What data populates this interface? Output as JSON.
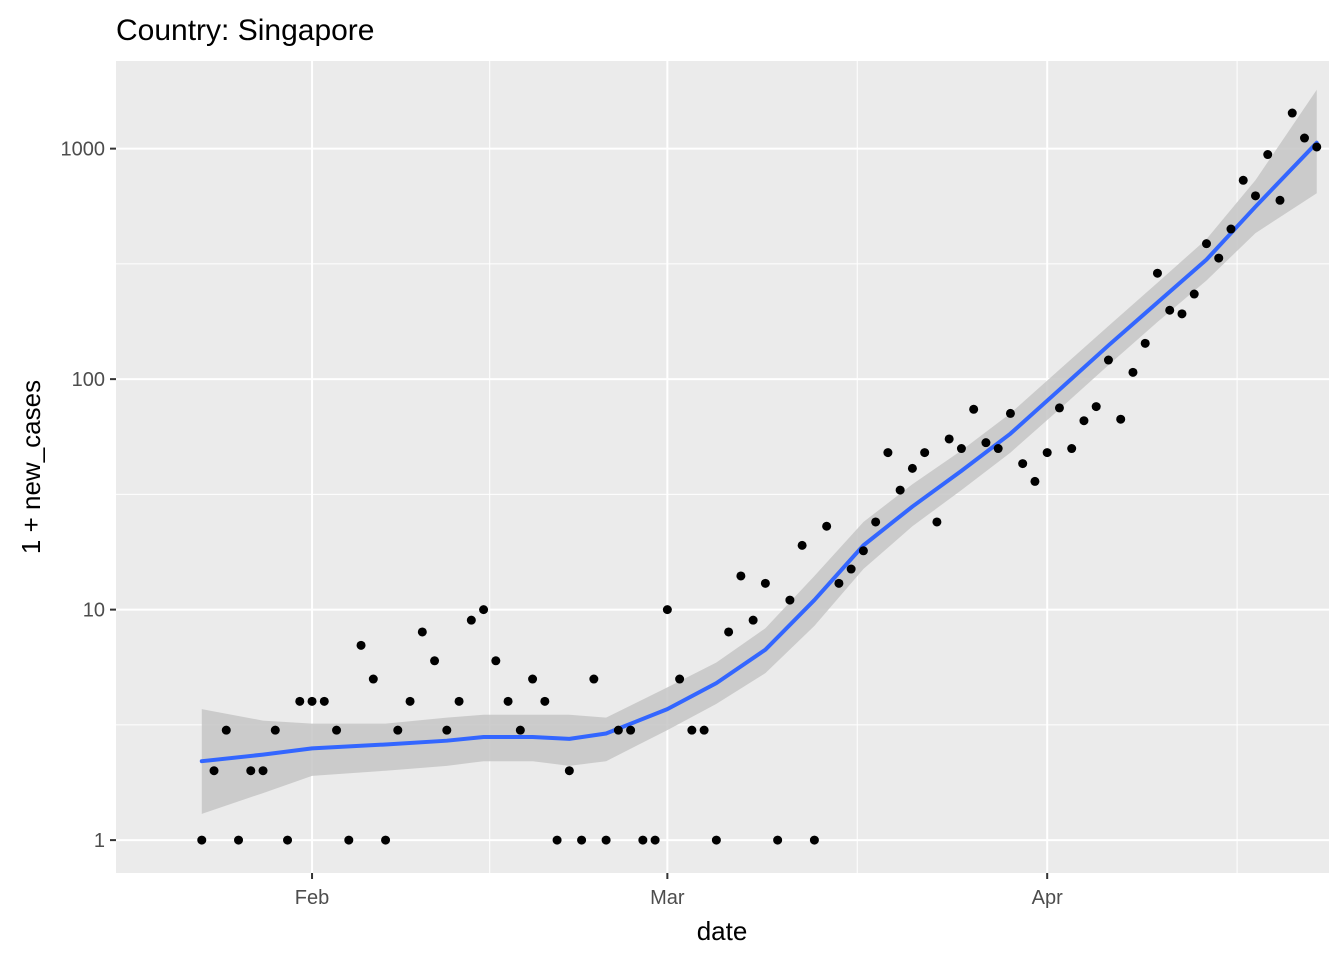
{
  "chart_data": {
    "type": "scatter",
    "title": "Country: Singapore",
    "xlabel": "date",
    "ylabel": "1 + new_cases",
    "y_scale": "log10",
    "ylim": [
      0.72,
      2400
    ],
    "xlim": [
      "2020-01-16",
      "2020-04-24"
    ],
    "x_ticks": [
      {
        "label": "Feb",
        "date": "2020-02-01"
      },
      {
        "label": "Mar",
        "date": "2020-03-01"
      },
      {
        "label": "Apr",
        "date": "2020-04-01"
      }
    ],
    "y_ticks": [
      {
        "label": "1",
        "value": 1
      },
      {
        "label": "10",
        "value": 10
      },
      {
        "label": "100",
        "value": 100
      },
      {
        "label": "1000",
        "value": 1000
      }
    ],
    "grid": true,
    "colors": {
      "panel": "#EBEBEB",
      "grid": "#FFFFFF",
      "point": "#000000",
      "smooth": "#3366FF",
      "ribbon": "#C6C6C6",
      "axis_text": "#4D4D4D"
    },
    "series": [
      {
        "type": "points",
        "points": [
          {
            "x": "2020-01-23",
            "y": 1
          },
          {
            "x": "2020-01-24",
            "y": 2
          },
          {
            "x": "2020-01-25",
            "y": 3
          },
          {
            "x": "2020-01-26",
            "y": 1
          },
          {
            "x": "2020-01-27",
            "y": 2
          },
          {
            "x": "2020-01-28",
            "y": 2
          },
          {
            "x": "2020-01-29",
            "y": 3
          },
          {
            "x": "2020-01-30",
            "y": 1
          },
          {
            "x": "2020-01-31",
            "y": 4
          },
          {
            "x": "2020-02-01",
            "y": 4
          },
          {
            "x": "2020-02-02",
            "y": 4
          },
          {
            "x": "2020-02-03",
            "y": 3
          },
          {
            "x": "2020-02-04",
            "y": 1
          },
          {
            "x": "2020-02-05",
            "y": 7
          },
          {
            "x": "2020-02-06",
            "y": 5
          },
          {
            "x": "2020-02-07",
            "y": 1
          },
          {
            "x": "2020-02-08",
            "y": 3
          },
          {
            "x": "2020-02-09",
            "y": 4
          },
          {
            "x": "2020-02-10",
            "y": 8
          },
          {
            "x": "2020-02-11",
            "y": 6
          },
          {
            "x": "2020-02-12",
            "y": 3
          },
          {
            "x": "2020-02-13",
            "y": 4
          },
          {
            "x": "2020-02-14",
            "y": 9
          },
          {
            "x": "2020-02-15",
            "y": 10
          },
          {
            "x": "2020-02-16",
            "y": 6
          },
          {
            "x": "2020-02-17",
            "y": 4
          },
          {
            "x": "2020-02-18",
            "y": 3
          },
          {
            "x": "2020-02-19",
            "y": 5
          },
          {
            "x": "2020-02-20",
            "y": 4
          },
          {
            "x": "2020-02-21",
            "y": 1
          },
          {
            "x": "2020-02-22",
            "y": 2
          },
          {
            "x": "2020-02-23",
            "y": 1
          },
          {
            "x": "2020-02-24",
            "y": 5
          },
          {
            "x": "2020-02-25",
            "y": 1
          },
          {
            "x": "2020-02-26",
            "y": 3
          },
          {
            "x": "2020-02-27",
            "y": 3
          },
          {
            "x": "2020-02-28",
            "y": 1
          },
          {
            "x": "2020-02-29",
            "y": 1
          },
          {
            "x": "2020-03-01",
            "y": 10
          },
          {
            "x": "2020-03-02",
            "y": 5
          },
          {
            "x": "2020-03-03",
            "y": 3
          },
          {
            "x": "2020-03-04",
            "y": 3
          },
          {
            "x": "2020-03-05",
            "y": 1
          },
          {
            "x": "2020-03-06",
            "y": 8
          },
          {
            "x": "2020-03-07",
            "y": 14
          },
          {
            "x": "2020-03-08",
            "y": 9
          },
          {
            "x": "2020-03-09",
            "y": 13
          },
          {
            "x": "2020-03-10",
            "y": 1
          },
          {
            "x": "2020-03-11",
            "y": 11
          },
          {
            "x": "2020-03-12",
            "y": 19
          },
          {
            "x": "2020-03-13",
            "y": 1
          },
          {
            "x": "2020-03-14",
            "y": 23
          },
          {
            "x": "2020-03-15",
            "y": 13
          },
          {
            "x": "2020-03-16",
            "y": 15
          },
          {
            "x": "2020-03-17",
            "y": 18
          },
          {
            "x": "2020-03-18",
            "y": 24
          },
          {
            "x": "2020-03-19",
            "y": 48
          },
          {
            "x": "2020-03-20",
            "y": 33
          },
          {
            "x": "2020-03-21",
            "y": 41
          },
          {
            "x": "2020-03-22",
            "y": 48
          },
          {
            "x": "2020-03-23",
            "y": 24
          },
          {
            "x": "2020-03-24",
            "y": 55
          },
          {
            "x": "2020-03-25",
            "y": 50
          },
          {
            "x": "2020-03-26",
            "y": 74
          },
          {
            "x": "2020-03-27",
            "y": 53
          },
          {
            "x": "2020-03-28",
            "y": 50
          },
          {
            "x": "2020-03-29",
            "y": 71
          },
          {
            "x": "2020-03-30",
            "y": 43
          },
          {
            "x": "2020-03-31",
            "y": 36
          },
          {
            "x": "2020-04-01",
            "y": 48
          },
          {
            "x": "2020-04-02",
            "y": 75
          },
          {
            "x": "2020-04-03",
            "y": 50
          },
          {
            "x": "2020-04-04",
            "y": 66
          },
          {
            "x": "2020-04-05",
            "y": 76
          },
          {
            "x": "2020-04-06",
            "y": 121
          },
          {
            "x": "2020-04-07",
            "y": 67
          },
          {
            "x": "2020-04-08",
            "y": 107
          },
          {
            "x": "2020-04-09",
            "y": 143
          },
          {
            "x": "2020-04-10",
            "y": 288
          },
          {
            "x": "2020-04-11",
            "y": 199
          },
          {
            "x": "2020-04-12",
            "y": 192
          },
          {
            "x": "2020-04-13",
            "y": 234
          },
          {
            "x": "2020-04-14",
            "y": 387
          },
          {
            "x": "2020-04-15",
            "y": 335
          },
          {
            "x": "2020-04-16",
            "y": 448
          },
          {
            "x": "2020-04-17",
            "y": 729
          },
          {
            "x": "2020-04-18",
            "y": 624
          },
          {
            "x": "2020-04-19",
            "y": 943
          },
          {
            "x": "2020-04-20",
            "y": 597
          },
          {
            "x": "2020-04-21",
            "y": 1427
          },
          {
            "x": "2020-04-22",
            "y": 1112
          },
          {
            "x": "2020-04-23",
            "y": 1017
          }
        ]
      },
      {
        "type": "smooth",
        "points": [
          {
            "x": "2020-01-23",
            "y": 2.2,
            "lower": 1.3,
            "upper": 3.7
          },
          {
            "x": "2020-01-28",
            "y": 2.35,
            "lower": 1.6,
            "upper": 3.3
          },
          {
            "x": "2020-02-01",
            "y": 2.5,
            "lower": 1.9,
            "upper": 3.2
          },
          {
            "x": "2020-02-07",
            "y": 2.6,
            "lower": 2.0,
            "upper": 3.2
          },
          {
            "x": "2020-02-12",
            "y": 2.7,
            "lower": 2.1,
            "upper": 3.4
          },
          {
            "x": "2020-02-15",
            "y": 2.8,
            "lower": 2.2,
            "upper": 3.5
          },
          {
            "x": "2020-02-19",
            "y": 2.8,
            "lower": 2.2,
            "upper": 3.5
          },
          {
            "x": "2020-02-22",
            "y": 2.75,
            "lower": 2.1,
            "upper": 3.5
          },
          {
            "x": "2020-02-25",
            "y": 2.9,
            "lower": 2.2,
            "upper": 3.4
          },
          {
            "x": "2020-03-01",
            "y": 3.7,
            "lower": 3.0,
            "upper": 4.6
          },
          {
            "x": "2020-03-05",
            "y": 4.8,
            "lower": 3.9,
            "upper": 5.9
          },
          {
            "x": "2020-03-09",
            "y": 6.7,
            "lower": 5.3,
            "upper": 8.3
          },
          {
            "x": "2020-03-13",
            "y": 11,
            "lower": 8.5,
            "upper": 14
          },
          {
            "x": "2020-03-17",
            "y": 19,
            "lower": 15,
            "upper": 24
          },
          {
            "x": "2020-03-21",
            "y": 28,
            "lower": 23,
            "upper": 35
          },
          {
            "x": "2020-03-25",
            "y": 40,
            "lower": 33,
            "upper": 49
          },
          {
            "x": "2020-03-29",
            "y": 58,
            "lower": 48,
            "upper": 71
          },
          {
            "x": "2020-04-02",
            "y": 90,
            "lower": 74,
            "upper": 110
          },
          {
            "x": "2020-04-06",
            "y": 140,
            "lower": 115,
            "upper": 170
          },
          {
            "x": "2020-04-10",
            "y": 215,
            "lower": 177,
            "upper": 262
          },
          {
            "x": "2020-04-14",
            "y": 330,
            "lower": 268,
            "upper": 405
          },
          {
            "x": "2020-04-18",
            "y": 560,
            "lower": 430,
            "upper": 730
          },
          {
            "x": "2020-04-23",
            "y": 1060,
            "lower": 640,
            "upper": 1800
          }
        ]
      }
    ]
  }
}
